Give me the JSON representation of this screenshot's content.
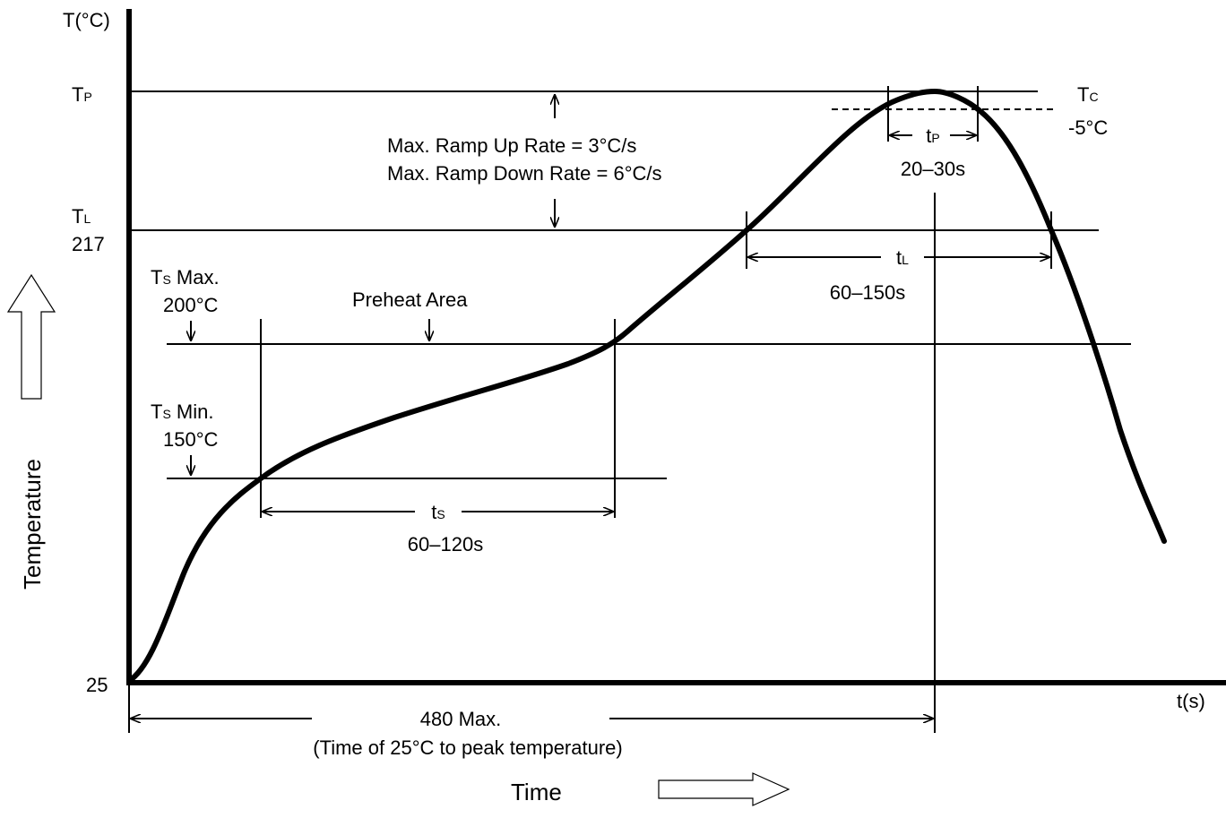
{
  "axes": {
    "y_title": "T(°C)",
    "x_unit": "t(s)",
    "y_caption": "Temperature",
    "x_caption": "Time"
  },
  "levels": {
    "tp": {
      "main": "T",
      "sub": "P"
    },
    "tl": {
      "main": "T",
      "sub": "L",
      "value": "217"
    },
    "ts_max": {
      "main": "T",
      "sub": "S",
      "suffix": " Max.",
      "value": "200°C"
    },
    "ts_min": {
      "main": "T",
      "sub": "S",
      "suffix": " Min.",
      "value": "150°C"
    },
    "tc": {
      "main": "T",
      "sub": "C",
      "value": "-5°C"
    },
    "origin": "25"
  },
  "annotations": {
    "ramp_up": "Max. Ramp Up Rate = 3°C/s",
    "ramp_down": "Max. Ramp Down Rate = 6°C/s",
    "preheat": "Preheat Area",
    "ts": {
      "main": "t",
      "sub": "S",
      "value": "60–120s"
    },
    "tl": {
      "main": "t",
      "sub": "L",
      "value": "60–150s"
    },
    "tp": {
      "main": "t",
      "sub": "P",
      "value": "20–30s"
    },
    "total": "480 Max.",
    "total_note": "(Time of 25°C to peak temperature)"
  }
}
